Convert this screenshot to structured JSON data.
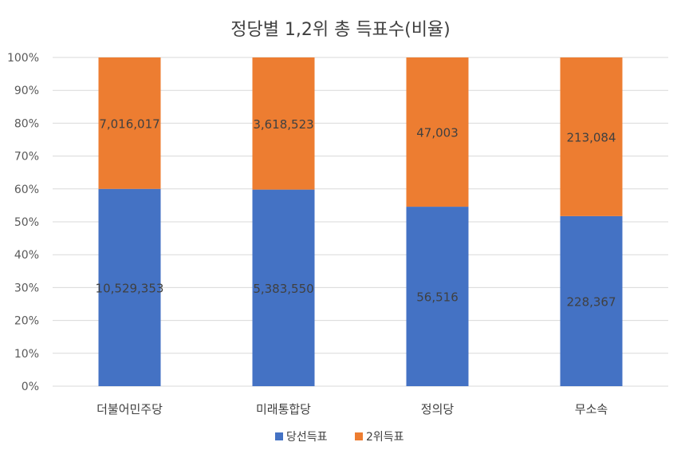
{
  "chart_data": {
    "type": "bar",
    "stacked": true,
    "normalized": true,
    "title": "정당별 1,2위 총 득표수(비율)",
    "categories": [
      "더불어민주당",
      "미래통합당",
      "정의당",
      "무소속"
    ],
    "series": [
      {
        "name": "당선득표",
        "color": "#4472c4",
        "values": [
          10529353,
          5383550,
          56516,
          228367
        ],
        "labels": [
          "10,529,353",
          "5,383,550",
          "56,516",
          "228,367"
        ]
      },
      {
        "name": "2위득표",
        "color": "#ed7d31",
        "values": [
          7016017,
          3618523,
          47003,
          213084
        ],
        "labels": [
          "7,016,017",
          "3,618,523",
          "47,003",
          "213,084"
        ]
      }
    ],
    "y_ticks": [
      "0%",
      "10%",
      "20%",
      "30%",
      "40%",
      "50%",
      "60%",
      "70%",
      "80%",
      "90%",
      "100%"
    ],
    "ylim": [
      0,
      100
    ],
    "grid": true,
    "legend_position": "bottom"
  }
}
